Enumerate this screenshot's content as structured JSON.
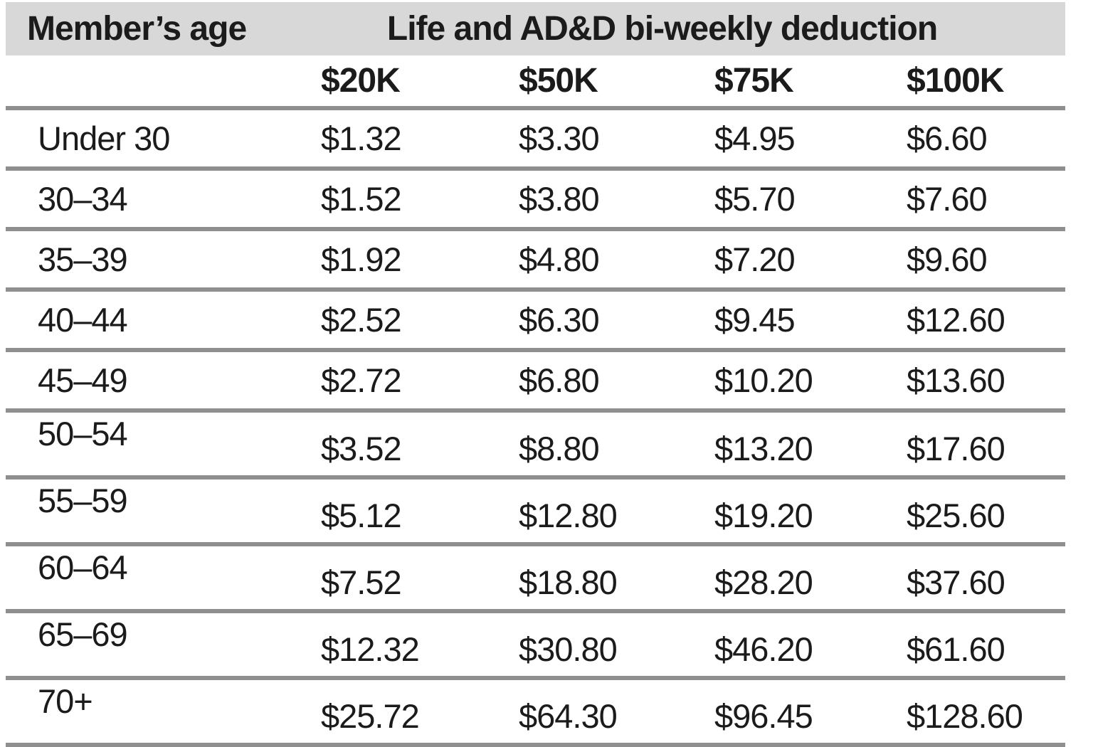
{
  "table": {
    "corner_header": "Member’s age",
    "group_header": "Life and AD&D bi-weekly deduction",
    "amount_headers": [
      "$20K",
      "$50K",
      "$75K",
      "$100K"
    ],
    "rows": [
      {
        "age": "Under 30",
        "values": [
          "$1.32",
          "$3.30",
          "$4.95",
          "$6.60"
        ]
      },
      {
        "age": "30–34",
        "values": [
          "$1.52",
          "$3.80",
          "$5.70",
          "$7.60"
        ]
      },
      {
        "age": "35–39",
        "values": [
          "$1.92",
          "$4.80",
          "$7.20",
          "$9.60"
        ]
      },
      {
        "age": "40–44",
        "values": [
          "$2.52",
          "$6.30",
          "$9.45",
          "$12.60"
        ]
      },
      {
        "age": "45–49",
        "values": [
          "$2.72",
          "$6.80",
          "$10.20",
          "$13.60"
        ]
      },
      {
        "age": "50–54",
        "values": [
          "$3.52",
          "$8.80",
          "$13.20",
          "$17.60"
        ]
      },
      {
        "age": "55–59",
        "values": [
          "$5.12",
          "$12.80",
          "$19.20",
          "$25.60"
        ]
      },
      {
        "age": "60–64",
        "values": [
          "$7.52",
          "$18.80",
          "$28.20",
          "$37.60"
        ]
      },
      {
        "age": "65–69",
        "values": [
          "$12.32",
          "$30.80",
          "$46.20",
          "$61.60"
        ]
      },
      {
        "age": "70+",
        "values": [
          "$25.72",
          "$64.30",
          "$96.45",
          "$128.60"
        ]
      }
    ]
  },
  "colors": {
    "header_bg": "#d8d8d8",
    "separator_line": "#8f8f8f",
    "text": "#1b1b1b"
  }
}
